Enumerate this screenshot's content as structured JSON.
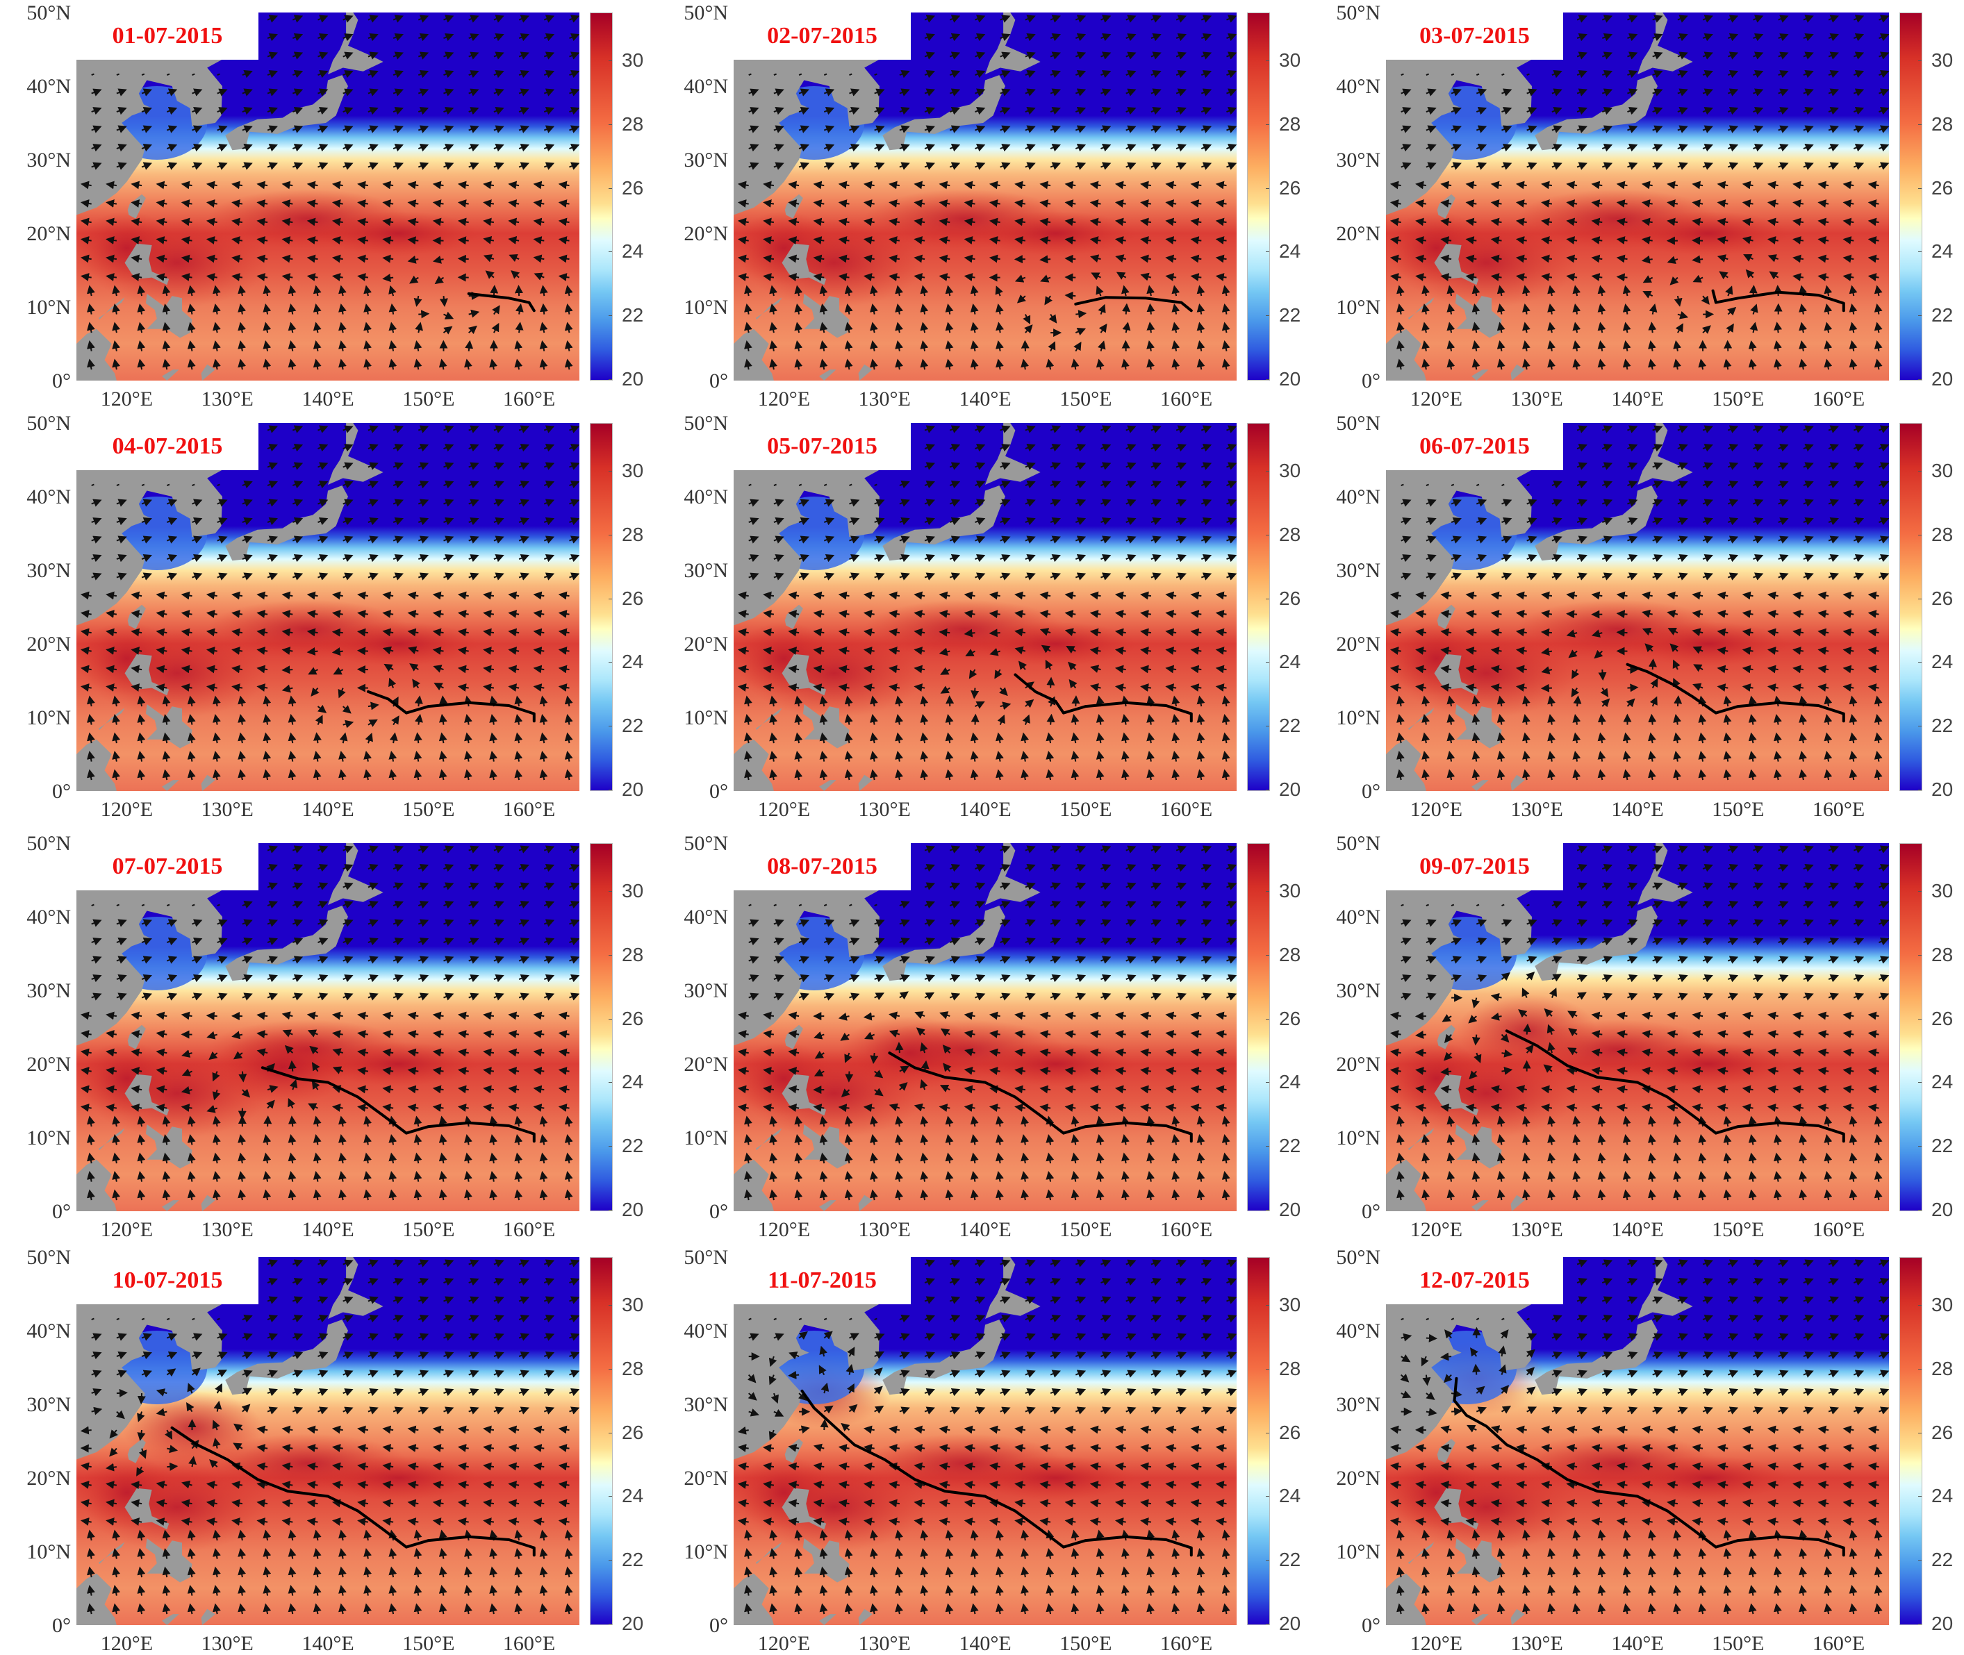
{
  "figure": {
    "description": "Daily SST maps with surface wind vectors and typhoon track, western North Pacific, 1–12 July 2015",
    "layout": {
      "rows": 4,
      "columns": 3
    }
  },
  "axes": {
    "y_ticks": [
      "50°N",
      "40°N",
      "30°N",
      "20°N",
      "10°N",
      "0°"
    ],
    "x_ticks": [
      "120°E",
      "130°E",
      "140°E",
      "150°E",
      "160°E"
    ],
    "lon_range": [
      115,
      165
    ],
    "lat_range": [
      0,
      50
    ]
  },
  "colorbar": {
    "ticks": [
      "30",
      "28",
      "26",
      "24",
      "22",
      "20"
    ],
    "range": [
      20,
      31.5
    ],
    "colormap": "RdYlBu_r (jet-like)",
    "colors": {
      "max": "#a50026",
      "mid": "#ffffbf",
      "min": "#1e00c8"
    }
  },
  "colors": {
    "date_label": "#f01010",
    "land": "#9a9a9a",
    "track": "#000000",
    "cold_sea": "#1e00c8"
  },
  "panels": [
    {
      "date": "01-07-2015",
      "track": [
        [
          154,
          11.8
        ],
        [
          158,
          11.2
        ],
        [
          160,
          10.6
        ],
        [
          160.5,
          9.5
        ]
      ]
    },
    {
      "date": "02-07-2015",
      "track": [
        [
          149,
          10.4
        ],
        [
          152,
          11.3
        ],
        [
          156,
          11.2
        ],
        [
          159.5,
          10.6
        ],
        [
          160.5,
          9.5
        ]
      ]
    },
    {
      "date": "03-07-2015",
      "track": [
        [
          147.5,
          12.2
        ],
        [
          147.8,
          10.6
        ],
        [
          150,
          11.2
        ],
        [
          154,
          12
        ],
        [
          158,
          11.6
        ],
        [
          160.5,
          10.5
        ],
        [
          160.5,
          9.5
        ]
      ]
    },
    {
      "date": "04-07-2015",
      "track": [
        [
          144,
          13.5
        ],
        [
          146,
          12.5
        ],
        [
          147.8,
          10.6
        ],
        [
          150,
          11.5
        ],
        [
          154,
          12
        ],
        [
          158,
          11.6
        ],
        [
          160.5,
          10.5
        ],
        [
          160.5,
          9.5
        ]
      ]
    },
    {
      "date": "05-07-2015",
      "track": [
        [
          143,
          15.8
        ],
        [
          145,
          13.5
        ],
        [
          147,
          12.2
        ],
        [
          147.8,
          10.6
        ],
        [
          150,
          11.5
        ],
        [
          154,
          12
        ],
        [
          158,
          11.6
        ],
        [
          160.5,
          10.5
        ],
        [
          160.5,
          9.5
        ]
      ]
    },
    {
      "date": "06-07-2015",
      "track": [
        [
          139,
          17.2
        ],
        [
          141,
          16.2
        ],
        [
          143.5,
          14.5
        ],
        [
          145.5,
          12.8
        ],
        [
          147.8,
          10.6
        ],
        [
          150,
          11.5
        ],
        [
          154,
          12
        ],
        [
          158,
          11.6
        ],
        [
          160.5,
          10.5
        ],
        [
          160.5,
          9.5
        ]
      ]
    },
    {
      "date": "07-07-2015",
      "track": [
        [
          133.5,
          19.5
        ],
        [
          137,
          18
        ],
        [
          140,
          17.5
        ],
        [
          143,
          15.5
        ],
        [
          145.5,
          13
        ],
        [
          147.8,
          10.6
        ],
        [
          150,
          11.5
        ],
        [
          154,
          12
        ],
        [
          158,
          11.6
        ],
        [
          160.5,
          10.5
        ],
        [
          160.5,
          9.5
        ]
      ]
    },
    {
      "date": "08-07-2015",
      "track": [
        [
          130.5,
          21.5
        ],
        [
          133,
          19.5
        ],
        [
          136,
          18.2
        ],
        [
          140,
          17.5
        ],
        [
          143,
          15.5
        ],
        [
          145.5,
          13
        ],
        [
          147.8,
          10.6
        ],
        [
          150,
          11.5
        ],
        [
          154,
          12
        ],
        [
          158,
          11.6
        ],
        [
          160.5,
          10.5
        ],
        [
          160.5,
          9.5
        ]
      ]
    },
    {
      "date": "09-07-2015",
      "track": [
        [
          127,
          24.5
        ],
        [
          130,
          22.5
        ],
        [
          133,
          19.8
        ],
        [
          136,
          18.2
        ],
        [
          140,
          17.5
        ],
        [
          143,
          15.5
        ],
        [
          145.5,
          13
        ],
        [
          147.8,
          10.6
        ],
        [
          150,
          11.5
        ],
        [
          154,
          12
        ],
        [
          158,
          11.6
        ],
        [
          160.5,
          10.5
        ],
        [
          160.5,
          9.5
        ]
      ]
    },
    {
      "date": "10-07-2015",
      "track": [
        [
          124.5,
          26.8
        ],
        [
          127,
          24.5
        ],
        [
          130,
          22.5
        ],
        [
          133,
          19.8
        ],
        [
          136,
          18.2
        ],
        [
          140,
          17.5
        ],
        [
          143,
          15.5
        ],
        [
          145.5,
          13
        ],
        [
          147.8,
          10.6
        ],
        [
          150,
          11.5
        ],
        [
          154,
          12
        ],
        [
          158,
          11.6
        ],
        [
          160.5,
          10.5
        ],
        [
          160.5,
          9.5
        ]
      ]
    },
    {
      "date": "11-07-2015",
      "track": [
        [
          121.8,
          31.8
        ],
        [
          123,
          29.5
        ],
        [
          125,
          27
        ],
        [
          127,
          24.5
        ],
        [
          130,
          22.5
        ],
        [
          133,
          19.8
        ],
        [
          136,
          18.2
        ],
        [
          140,
          17.5
        ],
        [
          143,
          15.5
        ],
        [
          145.5,
          13
        ],
        [
          147.8,
          10.6
        ],
        [
          150,
          11.5
        ],
        [
          154,
          12
        ],
        [
          158,
          11.6
        ],
        [
          160.5,
          10.5
        ],
        [
          160.5,
          9.5
        ]
      ]
    },
    {
      "date": "12-07-2015",
      "track": [
        [
          122,
          33.5
        ],
        [
          121.8,
          30.5
        ],
        [
          123,
          28.5
        ],
        [
          125,
          27
        ],
        [
          127,
          24.5
        ],
        [
          130,
          22.5
        ],
        [
          133,
          19.8
        ],
        [
          136,
          18.2
        ],
        [
          140,
          17.5
        ],
        [
          143,
          15.5
        ],
        [
          145.5,
          13
        ],
        [
          147.8,
          10.6
        ],
        [
          150,
          11.5
        ],
        [
          154,
          12
        ],
        [
          158,
          11.6
        ],
        [
          160.5,
          10.5
        ],
        [
          160.5,
          9.5
        ]
      ]
    }
  ],
  "chart_data": {
    "type": "heatmap",
    "title": "",
    "subtitle": "Sea surface temperature (°C) with wind vectors and typhoon track, 01-07-2015 to 12-07-2015",
    "xlabel": "",
    "ylabel": "",
    "x_ticks": [
      "120°E",
      "130°E",
      "140°E",
      "150°E",
      "160°E"
    ],
    "y_ticks": [
      "0°",
      "10°N",
      "20°N",
      "30°N",
      "40°N",
      "50°N"
    ],
    "colorbar_ticks": [
      20,
      22,
      24,
      26,
      28,
      30
    ],
    "colorbar_range": [
      20,
      31.5
    ],
    "xlim": [
      115,
      165
    ],
    "ylim": [
      0,
      50
    ],
    "legend": "none",
    "grid": false,
    "series": [
      {
        "name": "01-07-2015",
        "typhoon_track_end": [
          154,
          11.8
        ]
      },
      {
        "name": "02-07-2015",
        "typhoon_track_end": [
          149,
          10.4
        ]
      },
      {
        "name": "03-07-2015",
        "typhoon_track_end": [
          147.5,
          12.2
        ]
      },
      {
        "name": "04-07-2015",
        "typhoon_track_end": [
          144,
          13.5
        ]
      },
      {
        "name": "05-07-2015",
        "typhoon_track_end": [
          143,
          15.8
        ]
      },
      {
        "name": "06-07-2015",
        "typhoon_track_end": [
          139,
          17.2
        ]
      },
      {
        "name": "07-07-2015",
        "typhoon_track_end": [
          133.5,
          19.5
        ]
      },
      {
        "name": "08-07-2015",
        "typhoon_track_end": [
          130.5,
          21.5
        ]
      },
      {
        "name": "09-07-2015",
        "typhoon_track_end": [
          127,
          24.5
        ]
      },
      {
        "name": "10-07-2015",
        "typhoon_track_end": [
          124.5,
          26.8
        ]
      },
      {
        "name": "11-07-2015",
        "typhoon_track_end": [
          121.8,
          31.8
        ]
      },
      {
        "name": "12-07-2015",
        "typhoon_track_end": [
          122,
          33.5
        ]
      }
    ],
    "track_start": [
      160.5,
      9.5
    ],
    "sst_pattern": {
      "north_of_35N": "~20 (cold, blue)",
      "front_30_35N": "24-26",
      "tropics_0_25N": "28-31 (warm, red)"
    }
  }
}
